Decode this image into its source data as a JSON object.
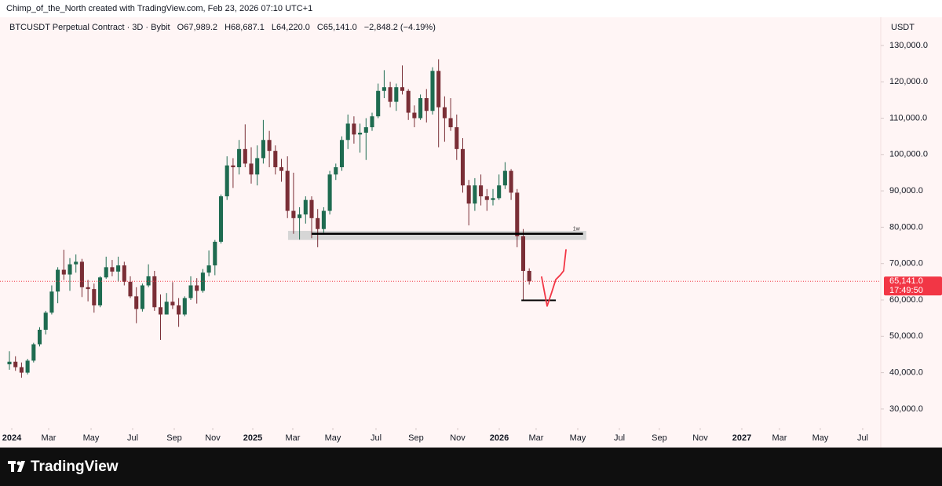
{
  "page_header": "Chimp_of_the_North created with TradingView.com, Feb 23, 2026 07:10 UTC+1",
  "footer": {
    "brand": "TradingView"
  },
  "chart_data": {
    "type": "candlestick",
    "legend": {
      "symbol": "BTCUSDT Perpetual Contract · 3D · Bybit",
      "open": "O67,989.2",
      "high": "H68,687.1",
      "low": "L64,220.0",
      "close": "C65,141.0",
      "change": "−2,848.2 (−4.19%)"
    },
    "y_axis_label": "USDT",
    "up_color": "#1e6b50",
    "down_color": "#7a2e36",
    "price_tag": {
      "value_label": "65,141.0",
      "countdown": "17:49:50",
      "color": "#f23645"
    },
    "xlim": [
      -1.56,
      144.16
    ],
    "xticks": [
      {
        "value": 0.39,
        "label": "2024"
      },
      {
        "value": 6.49,
        "label": "Mar"
      },
      {
        "value": 13.51,
        "label": "May"
      },
      {
        "value": 20.39,
        "label": "Jul"
      },
      {
        "value": 27.27,
        "label": "Sep"
      },
      {
        "value": 33.64,
        "label": "Nov"
      },
      {
        "value": 40.26,
        "label": "2025"
      },
      {
        "value": 46.88,
        "label": "Mar"
      },
      {
        "value": 53.51,
        "label": "May"
      },
      {
        "value": 60.65,
        "label": "Jul"
      },
      {
        "value": 67.27,
        "label": "Sep"
      },
      {
        "value": 74.16,
        "label": "Nov"
      },
      {
        "value": 81.04,
        "label": "2026"
      },
      {
        "value": 87.14,
        "label": "Mar"
      },
      {
        "value": 94.03,
        "label": "May"
      },
      {
        "value": 100.91,
        "label": "Jul"
      },
      {
        "value": 107.53,
        "label": "Sep"
      },
      {
        "value": 114.29,
        "label": "Nov"
      },
      {
        "value": 121.17,
        "label": "2027"
      },
      {
        "value": 127.4,
        "label": "Mar"
      },
      {
        "value": 134.16,
        "label": "May"
      },
      {
        "value": 141.17,
        "label": "Jul"
      }
    ],
    "ylim": [
      24800,
      137100
    ],
    "yticks": [
      {
        "value": 30000,
        "label": "30,000.0"
      },
      {
        "value": 40000,
        "label": "40,000.0"
      },
      {
        "value": 50000,
        "label": "50,000.0"
      },
      {
        "value": 60000,
        "label": "60,000.0"
      },
      {
        "value": 70000,
        "label": "70,000.0"
      },
      {
        "value": 80000,
        "label": "80,000.0"
      },
      {
        "value": 90000,
        "label": "90,000.0"
      },
      {
        "value": 100000,
        "label": "100,000.0"
      },
      {
        "value": 110000,
        "label": "110,000.0"
      },
      {
        "value": 120000,
        "label": "120,000.0"
      },
      {
        "value": 130000,
        "label": "130,000.0"
      }
    ],
    "candles": [
      [
        42300,
        45900,
        40800,
        43000
      ],
      [
        43000,
        44500,
        40500,
        41500
      ],
      [
        41500,
        42800,
        38600,
        40000
      ],
      [
        40000,
        43800,
        39500,
        43300
      ],
      [
        43300,
        48200,
        42800,
        47800
      ],
      [
        47800,
        52500,
        47200,
        51800
      ],
      [
        51800,
        57000,
        50500,
        56500
      ],
      [
        56500,
        64000,
        56000,
        62300
      ],
      [
        62300,
        69000,
        59100,
        68300
      ],
      [
        68300,
        73800,
        65500,
        67000
      ],
      [
        67000,
        71500,
        62500,
        69800
      ],
      [
        69800,
        72500,
        67500,
        70500
      ],
      [
        70500,
        71300,
        60800,
        63500
      ],
      [
        63500,
        65500,
        59600,
        63000
      ],
      [
        63000,
        64500,
        56500,
        58500
      ],
      [
        58500,
        66500,
        58000,
        66200
      ],
      [
        66200,
        71900,
        65800,
        69000
      ],
      [
        69000,
        71000,
        66500,
        67800
      ],
      [
        67800,
        71900,
        65000,
        69500
      ],
      [
        69500,
        70500,
        64000,
        65000
      ],
      [
        65000,
        66500,
        60500,
        61000
      ],
      [
        61000,
        63500,
        53600,
        57500
      ],
      [
        57500,
        64500,
        56800,
        64000
      ],
      [
        64000,
        69800,
        63500,
        66500
      ],
      [
        66500,
        68000,
        57000,
        58000
      ],
      [
        58000,
        61500,
        49000,
        56000
      ],
      [
        56000,
        61900,
        56000,
        59500
      ],
      [
        59500,
        64900,
        57500,
        58500
      ],
      [
        58500,
        60500,
        52600,
        56000
      ],
      [
        56000,
        61000,
        55500,
        60500
      ],
      [
        60500,
        66500,
        60000,
        64000
      ],
      [
        64000,
        66000,
        59000,
        62500
      ],
      [
        62500,
        68500,
        62000,
        67500
      ],
      [
        67500,
        73600,
        66500,
        69500
      ],
      [
        69500,
        76500,
        66800,
        76000
      ],
      [
        76000,
        89000,
        75500,
        88500
      ],
      [
        88500,
        99500,
        87500,
        97000
      ],
      [
        97000,
        99000,
        90800,
        96500
      ],
      [
        96500,
        104000,
        94500,
        101500
      ],
      [
        101500,
        108300,
        96500,
        97500
      ],
      [
        97500,
        102000,
        92000,
        94500
      ],
      [
        94500,
        102500,
        91500,
        99000
      ],
      [
        99000,
        109500,
        97500,
        104000
      ],
      [
        104000,
        106500,
        96500,
        101000
      ],
      [
        101000,
        102500,
        94500,
        96500
      ],
      [
        96500,
        98800,
        92500,
        95500
      ],
      [
        95500,
        99500,
        82500,
        84500
      ],
      [
        84500,
        95000,
        78200,
        82500
      ],
      [
        82500,
        85500,
        76600,
        83500
      ],
      [
        83500,
        88500,
        81000,
        87500
      ],
      [
        87500,
        88500,
        77000,
        82500
      ],
      [
        82500,
        85000,
        74500,
        79500
      ],
      [
        79500,
        85500,
        78500,
        84500
      ],
      [
        84500,
        95500,
        83500,
        94500
      ],
      [
        94500,
        97500,
        93000,
        96500
      ],
      [
        96500,
        105000,
        95500,
        104000
      ],
      [
        104000,
        111000,
        101500,
        108500
      ],
      [
        108500,
        110500,
        103000,
        105500
      ],
      [
        105500,
        108500,
        100500,
        106000
      ],
      [
        106000,
        110000,
        98500,
        107500
      ],
      [
        107500,
        111500,
        106500,
        110500
      ],
      [
        110500,
        119500,
        110000,
        117500
      ],
      [
        117500,
        123200,
        115500,
        118500
      ],
      [
        118500,
        120000,
        113000,
        114500
      ],
      [
        114500,
        119500,
        112000,
        118500
      ],
      [
        118500,
        124500,
        116500,
        117500
      ],
      [
        117500,
        118000,
        109500,
        111500
      ],
      [
        111500,
        113500,
        107500,
        110000
      ],
      [
        110000,
        116500,
        109500,
        115500
      ],
      [
        115500,
        118000,
        108800,
        112000
      ],
      [
        112000,
        124000,
        111000,
        123000
      ],
      [
        123000,
        126200,
        102000,
        113000
      ],
      [
        113000,
        116000,
        103500,
        110000
      ],
      [
        110000,
        115500,
        106500,
        107500
      ],
      [
        107500,
        111000,
        98500,
        101500
      ],
      [
        101500,
        104500,
        89500,
        91500
      ],
      [
        91500,
        93000,
        80500,
        86500
      ],
      [
        86500,
        93500,
        84500,
        91500
      ],
      [
        91500,
        94500,
        86000,
        88500
      ],
      [
        88500,
        90500,
        84500,
        87500
      ],
      [
        87500,
        90500,
        86000,
        88000
      ],
      [
        88000,
        94500,
        87500,
        91500
      ],
      [
        91500,
        97900,
        90500,
        95500
      ],
      [
        95500,
        96000,
        87500,
        89500
      ],
      [
        89500,
        90500,
        74500,
        77500
      ],
      [
        77500,
        79500,
        60000,
        67989.2
      ],
      [
        67989.2,
        68687.1,
        64220.0,
        65141.0
      ]
    ],
    "annotations": {
      "zone": {
        "x": [
          46.1,
          95.45
        ],
        "y": [
          76500,
          79000
        ],
        "color": "#d6d6d6"
      },
      "level": {
        "x": [
          50.0,
          94.9
        ],
        "y": 78200,
        "label": "1w",
        "color": "#000000"
      },
      "low_level": {
        "x": [
          84.7,
          90.4
        ],
        "y": 59900,
        "color": "#000000"
      },
      "projection": {
        "x": [
          88.05,
          88.96,
          89.74,
          90.39,
          91.17,
          91.69,
          92.08
        ],
        "y": [
          66300,
          58300,
          62200,
          65600,
          66900,
          68000,
          73800
        ],
        "color": "#f23645"
      }
    }
  }
}
